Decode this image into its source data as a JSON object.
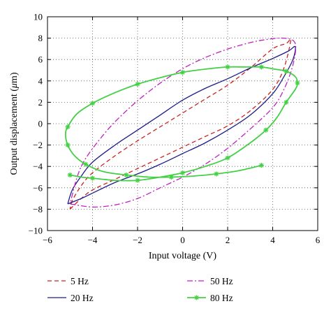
{
  "chart_data": {
    "type": "line",
    "title": "",
    "xlabel": "Input voltage (V)",
    "ylabel_prefix": "Output displacement (",
    "ylabel_mu": "μ",
    "ylabel_suffix": "m)",
    "xlim": [
      -6,
      6
    ],
    "ylim": [
      -10,
      10
    ],
    "xticks": [
      -6,
      -4,
      -2,
      0,
      2,
      4,
      6
    ],
    "yticks": [
      -10,
      -8,
      -6,
      -4,
      -2,
      0,
      2,
      4,
      6,
      8,
      10
    ],
    "xtick_labels": [
      "−6",
      "−4",
      "−2",
      "0",
      "2",
      "4",
      "6"
    ],
    "ytick_labels": [
      "−10",
      "−8",
      "−6",
      "−4",
      "−2",
      "0",
      "2",
      "4",
      "6",
      "8",
      "10"
    ],
    "grid": true,
    "grid_style": "dotted",
    "legend_position": "bottom",
    "series": [
      {
        "name": "5 Hz",
        "color": "#cc2222",
        "dash": "dashed",
        "marker": "none",
        "x": [
          -5.0,
          -4.5,
          -4.0,
          -3.0,
          -2.0,
          -1.0,
          0.0,
          1.0,
          2.0,
          3.0,
          4.0,
          4.5,
          4.8,
          4.6,
          4.0,
          3.0,
          2.0,
          1.0,
          0.0,
          -1.0,
          -2.0,
          -3.0,
          -4.0,
          -4.5,
          -4.9,
          -5.0
        ],
        "y": [
          -8.0,
          -7.0,
          -6.2,
          -5.2,
          -4.2,
          -3.2,
          -2.2,
          -1.2,
          -0.2,
          1.2,
          3.2,
          5.2,
          7.8,
          7.5,
          7.0,
          5.2,
          3.6,
          2.3,
          1.0,
          -0.3,
          -1.6,
          -3.0,
          -4.6,
          -5.8,
          -7.2,
          -8.0
        ]
      },
      {
        "name": "20 Hz",
        "color": "#1c1c8c",
        "dash": "solid",
        "marker": "none",
        "x": [
          -5.1,
          -4.5,
          -4.0,
          -3.0,
          -2.0,
          -1.0,
          0.0,
          1.0,
          2.0,
          3.0,
          4.0,
          4.5,
          4.9,
          5.0,
          4.7,
          4.0,
          3.0,
          2.0,
          1.0,
          0.0,
          -1.0,
          -2.0,
          -3.0,
          -4.0,
          -4.5,
          -4.9,
          -5.1
        ],
        "y": [
          -7.5,
          -7.0,
          -6.5,
          -5.5,
          -4.7,
          -3.8,
          -2.8,
          -1.8,
          -0.6,
          0.8,
          2.8,
          4.4,
          6.0,
          7.2,
          6.8,
          6.1,
          5.2,
          4.2,
          3.3,
          2.2,
          0.8,
          -0.6,
          -2.0,
          -3.6,
          -4.9,
          -6.2,
          -7.5
        ]
      },
      {
        "name": "50 Hz",
        "color": "#c020c0",
        "dash": "dashdot",
        "marker": "none",
        "x": [
          -5.0,
          -4.0,
          -3.0,
          -2.0,
          -1.0,
          0.0,
          1.0,
          2.0,
          3.0,
          4.0,
          4.5,
          4.9,
          5.0,
          4.5,
          3.5,
          2.5,
          1.5,
          0.5,
          -0.5,
          -1.5,
          -2.5,
          -3.5,
          -4.5,
          -5.0
        ],
        "y": [
          -7.5,
          -7.8,
          -7.6,
          -7.0,
          -6.0,
          -5.0,
          -3.8,
          -2.3,
          -0.5,
          1.5,
          3.2,
          5.5,
          7.5,
          8.0,
          7.8,
          7.3,
          6.6,
          5.7,
          4.5,
          3.0,
          1.2,
          -1.0,
          -4.0,
          -7.5
        ]
      },
      {
        "name": "80 Hz",
        "color": "#44d044",
        "dash": "solid",
        "marker": "asterisk",
        "x": [
          -5.0,
          -4.5,
          -4.0,
          -3.0,
          -2.0,
          -1.0,
          0.0,
          1.0,
          2.0,
          3.0,
          3.7,
          4.2,
          4.6,
          5.0,
          5.1,
          5.0,
          4.6,
          4.1,
          3.5,
          2.8,
          2.0,
          1.0,
          0.0,
          -1.0,
          -2.0,
          -3.0,
          -4.0,
          -4.7,
          -5.1,
          -5.2,
          -5.1,
          -4.8,
          -4.3,
          -3.5,
          -2.5,
          -1.5,
          -0.5,
          0.5,
          1.5,
          2.5,
          3.5
        ],
        "y": [
          -4.8,
          -5.0,
          -5.1,
          -5.3,
          -5.3,
          -5.0,
          -4.6,
          -4.0,
          -3.2,
          -1.8,
          -0.6,
          0.6,
          2.0,
          3.2,
          3.8,
          4.4,
          4.9,
          5.1,
          5.3,
          5.3,
          5.3,
          5.1,
          4.8,
          4.3,
          3.7,
          2.9,
          1.9,
          0.9,
          -0.3,
          -1.0,
          -2.0,
          -3.0,
          -3.8,
          -4.5,
          -4.8,
          -5.0,
          -5.0,
          -4.9,
          -4.7,
          -4.4,
          -3.9
        ]
      }
    ]
  },
  "legend": [
    {
      "label": "5 Hz"
    },
    {
      "label": "20 Hz"
    },
    {
      "label": "50 Hz"
    },
    {
      "label": "80 Hz"
    }
  ]
}
